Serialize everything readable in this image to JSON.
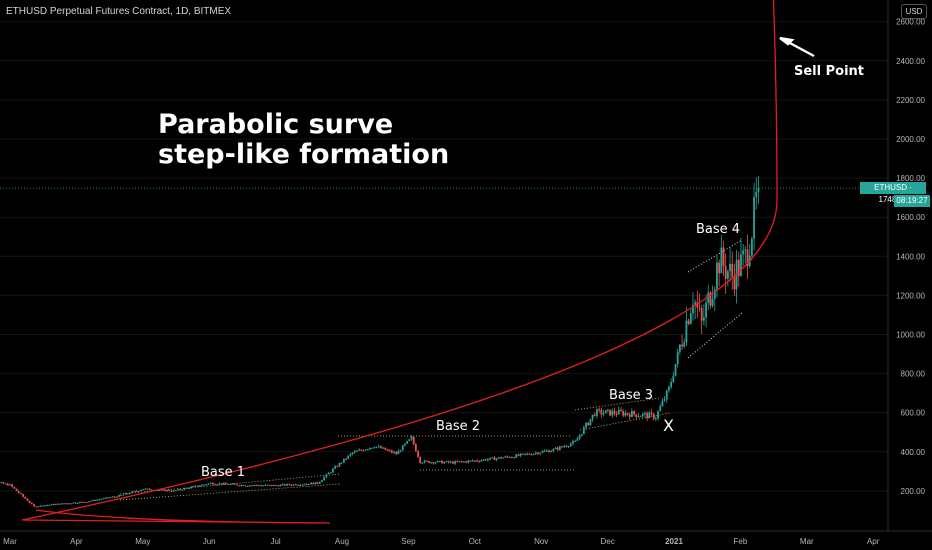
{
  "header": {
    "title": "ETHUSD Perpetual Futures Contract, 1D, BITMEX",
    "currency": "USD"
  },
  "annotations": {
    "title_line1": "Parabolic surve",
    "title_line2": "step-like formation",
    "base1": "Base 1",
    "base2": "Base 2",
    "base3": "Base 3",
    "base4": "Base 4",
    "x_mark": "X",
    "sell_point": "Sell Point"
  },
  "price_tag": {
    "symbol_price": "ETHUSD · 1748.75",
    "countdown": "08:19:27"
  },
  "colors": {
    "background": "#000000",
    "up": "#26a69a",
    "down": "#ef5350",
    "curve": "#e0201e",
    "text": "#ffffff",
    "axis_text": "#b2b5be"
  },
  "chart_data": {
    "type": "candlestick",
    "title": "ETHUSD Perpetual Futures Contract, 1D, BITMEX",
    "x_ticks": [
      "Mar",
      "Apr",
      "May",
      "Jun",
      "Jul",
      "Aug",
      "Sep",
      "Oct",
      "Nov",
      "Dec",
      "2021",
      "Feb",
      "Mar",
      "Apr"
    ],
    "y_ticks": [
      "200.00",
      "400.00",
      "600.00",
      "800.00",
      "1000.00",
      "1200.00",
      "1400.00",
      "1600.00",
      "1800.00",
      "2000.00",
      "2200.00",
      "2400.00",
      "2600.00"
    ],
    "ylim": [
      0,
      2700
    ],
    "last_price": 1748.75,
    "price_path": [
      [
        "2020-02-15",
        265
      ],
      [
        "2020-03-01",
        230
      ],
      [
        "2020-03-12",
        120
      ],
      [
        "2020-03-20",
        130
      ],
      [
        "2020-04-05",
        145
      ],
      [
        "2020-04-20",
        175
      ],
      [
        "2020-05-01",
        210
      ],
      [
        "2020-05-15",
        200
      ],
      [
        "2020-06-01",
        240
      ],
      [
        "2020-06-15",
        230
      ],
      [
        "2020-07-01",
        228
      ],
      [
        "2020-07-20",
        240
      ],
      [
        "2020-07-28",
        320
      ],
      [
        "2020-08-05",
        395
      ],
      [
        "2020-08-15",
        430
      ],
      [
        "2020-08-25",
        390
      ],
      [
        "2020-09-01",
        470
      ],
      [
        "2020-09-05",
        350
      ],
      [
        "2020-09-20",
        345
      ],
      [
        "2020-10-01",
        355
      ],
      [
        "2020-10-20",
        380
      ],
      [
        "2020-11-05",
        410
      ],
      [
        "2020-11-15",
        450
      ],
      [
        "2020-11-24",
        600
      ],
      [
        "2020-12-05",
        600
      ],
      [
        "2020-12-15",
        590
      ],
      [
        "2020-12-22",
        580
      ],
      [
        "2020-12-28",
        720
      ],
      [
        "2021-01-03",
        980
      ],
      [
        "2021-01-08",
        1200
      ],
      [
        "2021-01-12",
        1050
      ],
      [
        "2021-01-20",
        1380
      ],
      [
        "2021-01-26",
        1300
      ],
      [
        "2021-02-01",
        1390
      ],
      [
        "2021-02-05",
        1600
      ],
      [
        "2021-02-07",
        1748.75
      ]
    ],
    "annotations": [
      "Base 1",
      "Base 2",
      "Base 3",
      "Base 4",
      "X",
      "Sell Point"
    ]
  }
}
